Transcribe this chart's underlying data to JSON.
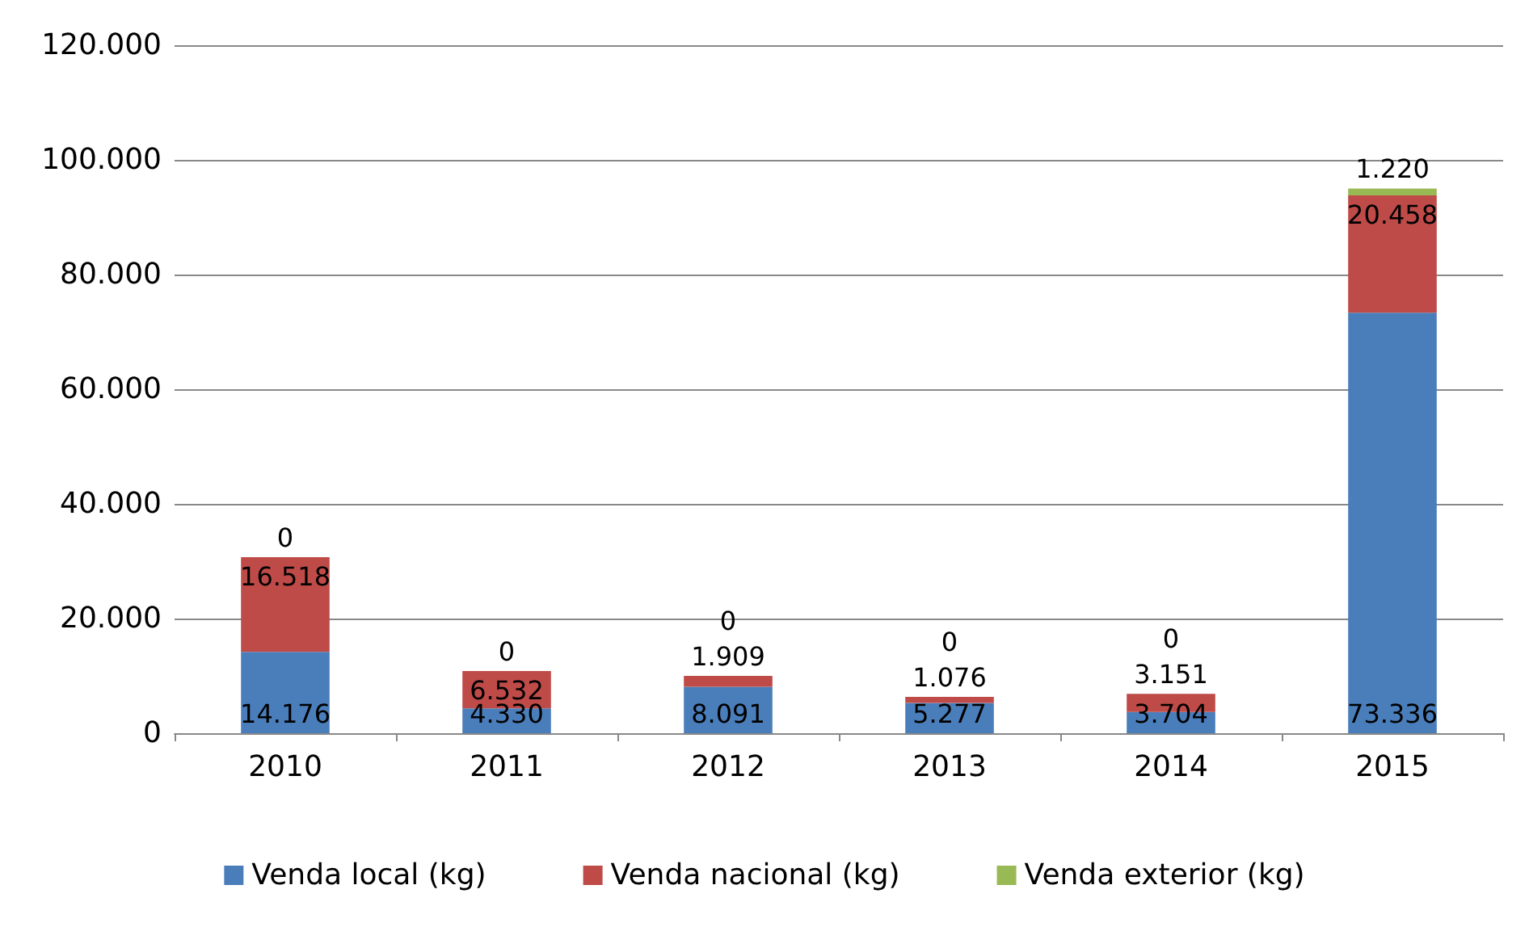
{
  "chart_data": {
    "type": "bar",
    "stacked": true,
    "categories": [
      "2010",
      "2011",
      "2012",
      "2013",
      "2014",
      "2015"
    ],
    "series": [
      {
        "name": "Venda local (kg)",
        "color": "#4a7ebb",
        "values": [
          14176,
          4330,
          8091,
          5277,
          3704,
          73336
        ],
        "value_labels": [
          "14.176",
          "4.330",
          "8.091",
          "5.277",
          "3.704",
          "73.336"
        ]
      },
      {
        "name": "Venda nacional (kg)",
        "color": "#be4b48",
        "values": [
          16518,
          6532,
          1909,
          1076,
          3151,
          20458
        ],
        "value_labels": [
          "16.518",
          "6.532",
          "1.909",
          "1.076",
          "3.151",
          "20.458"
        ]
      },
      {
        "name": "Venda exterior (kg)",
        "color": "#98b954",
        "values": [
          0,
          0,
          0,
          0,
          0,
          1220
        ],
        "value_labels": [
          "0",
          "0",
          "0",
          "0",
          "0",
          "1.220"
        ]
      }
    ],
    "ylim": [
      0,
      120000
    ],
    "yticks": [
      {
        "value": 0,
        "label": "0"
      },
      {
        "value": 20000,
        "label": "20.000"
      },
      {
        "value": 40000,
        "label": "40.000"
      },
      {
        "value": 60000,
        "label": "60.000"
      },
      {
        "value": 80000,
        "label": "80.000"
      },
      {
        "value": 100000,
        "label": "100.000"
      },
      {
        "value": 120000,
        "label": "120.000"
      }
    ],
    "grid": "y",
    "legend": "bottom"
  }
}
